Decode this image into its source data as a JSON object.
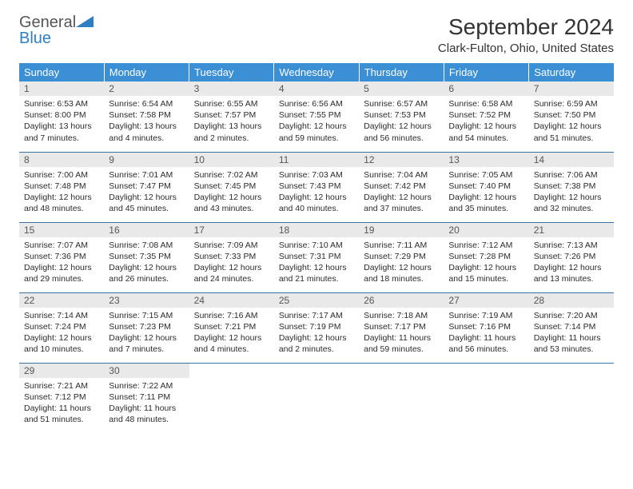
{
  "brand": {
    "word1": "General",
    "word2": "Blue"
  },
  "title": "September 2024",
  "location": "Clark-Fulton, Ohio, United States",
  "colors": {
    "header_bg": "#3b8fd4",
    "header_text": "#ffffff",
    "daynum_bg": "#e9e9e9",
    "row_border": "#3873a3",
    "brand_blue": "#2d7fc1"
  },
  "weekdays": [
    "Sunday",
    "Monday",
    "Tuesday",
    "Wednesday",
    "Thursday",
    "Friday",
    "Saturday"
  ],
  "weeks": [
    [
      {
        "n": "1",
        "sr": "Sunrise: 6:53 AM",
        "ss": "Sunset: 8:00 PM",
        "dl": "Daylight: 13 hours and 7 minutes."
      },
      {
        "n": "2",
        "sr": "Sunrise: 6:54 AM",
        "ss": "Sunset: 7:58 PM",
        "dl": "Daylight: 13 hours and 4 minutes."
      },
      {
        "n": "3",
        "sr": "Sunrise: 6:55 AM",
        "ss": "Sunset: 7:57 PM",
        "dl": "Daylight: 13 hours and 2 minutes."
      },
      {
        "n": "4",
        "sr": "Sunrise: 6:56 AM",
        "ss": "Sunset: 7:55 PM",
        "dl": "Daylight: 12 hours and 59 minutes."
      },
      {
        "n": "5",
        "sr": "Sunrise: 6:57 AM",
        "ss": "Sunset: 7:53 PM",
        "dl": "Daylight: 12 hours and 56 minutes."
      },
      {
        "n": "6",
        "sr": "Sunrise: 6:58 AM",
        "ss": "Sunset: 7:52 PM",
        "dl": "Daylight: 12 hours and 54 minutes."
      },
      {
        "n": "7",
        "sr": "Sunrise: 6:59 AM",
        "ss": "Sunset: 7:50 PM",
        "dl": "Daylight: 12 hours and 51 minutes."
      }
    ],
    [
      {
        "n": "8",
        "sr": "Sunrise: 7:00 AM",
        "ss": "Sunset: 7:48 PM",
        "dl": "Daylight: 12 hours and 48 minutes."
      },
      {
        "n": "9",
        "sr": "Sunrise: 7:01 AM",
        "ss": "Sunset: 7:47 PM",
        "dl": "Daylight: 12 hours and 45 minutes."
      },
      {
        "n": "10",
        "sr": "Sunrise: 7:02 AM",
        "ss": "Sunset: 7:45 PM",
        "dl": "Daylight: 12 hours and 43 minutes."
      },
      {
        "n": "11",
        "sr": "Sunrise: 7:03 AM",
        "ss": "Sunset: 7:43 PM",
        "dl": "Daylight: 12 hours and 40 minutes."
      },
      {
        "n": "12",
        "sr": "Sunrise: 7:04 AM",
        "ss": "Sunset: 7:42 PM",
        "dl": "Daylight: 12 hours and 37 minutes."
      },
      {
        "n": "13",
        "sr": "Sunrise: 7:05 AM",
        "ss": "Sunset: 7:40 PM",
        "dl": "Daylight: 12 hours and 35 minutes."
      },
      {
        "n": "14",
        "sr": "Sunrise: 7:06 AM",
        "ss": "Sunset: 7:38 PM",
        "dl": "Daylight: 12 hours and 32 minutes."
      }
    ],
    [
      {
        "n": "15",
        "sr": "Sunrise: 7:07 AM",
        "ss": "Sunset: 7:36 PM",
        "dl": "Daylight: 12 hours and 29 minutes."
      },
      {
        "n": "16",
        "sr": "Sunrise: 7:08 AM",
        "ss": "Sunset: 7:35 PM",
        "dl": "Daylight: 12 hours and 26 minutes."
      },
      {
        "n": "17",
        "sr": "Sunrise: 7:09 AM",
        "ss": "Sunset: 7:33 PM",
        "dl": "Daylight: 12 hours and 24 minutes."
      },
      {
        "n": "18",
        "sr": "Sunrise: 7:10 AM",
        "ss": "Sunset: 7:31 PM",
        "dl": "Daylight: 12 hours and 21 minutes."
      },
      {
        "n": "19",
        "sr": "Sunrise: 7:11 AM",
        "ss": "Sunset: 7:29 PM",
        "dl": "Daylight: 12 hours and 18 minutes."
      },
      {
        "n": "20",
        "sr": "Sunrise: 7:12 AM",
        "ss": "Sunset: 7:28 PM",
        "dl": "Daylight: 12 hours and 15 minutes."
      },
      {
        "n": "21",
        "sr": "Sunrise: 7:13 AM",
        "ss": "Sunset: 7:26 PM",
        "dl": "Daylight: 12 hours and 13 minutes."
      }
    ],
    [
      {
        "n": "22",
        "sr": "Sunrise: 7:14 AM",
        "ss": "Sunset: 7:24 PM",
        "dl": "Daylight: 12 hours and 10 minutes."
      },
      {
        "n": "23",
        "sr": "Sunrise: 7:15 AM",
        "ss": "Sunset: 7:23 PM",
        "dl": "Daylight: 12 hours and 7 minutes."
      },
      {
        "n": "24",
        "sr": "Sunrise: 7:16 AM",
        "ss": "Sunset: 7:21 PM",
        "dl": "Daylight: 12 hours and 4 minutes."
      },
      {
        "n": "25",
        "sr": "Sunrise: 7:17 AM",
        "ss": "Sunset: 7:19 PM",
        "dl": "Daylight: 12 hours and 2 minutes."
      },
      {
        "n": "26",
        "sr": "Sunrise: 7:18 AM",
        "ss": "Sunset: 7:17 PM",
        "dl": "Daylight: 11 hours and 59 minutes."
      },
      {
        "n": "27",
        "sr": "Sunrise: 7:19 AM",
        "ss": "Sunset: 7:16 PM",
        "dl": "Daylight: 11 hours and 56 minutes."
      },
      {
        "n": "28",
        "sr": "Sunrise: 7:20 AM",
        "ss": "Sunset: 7:14 PM",
        "dl": "Daylight: 11 hours and 53 minutes."
      }
    ],
    [
      {
        "n": "29",
        "sr": "Sunrise: 7:21 AM",
        "ss": "Sunset: 7:12 PM",
        "dl": "Daylight: 11 hours and 51 minutes."
      },
      {
        "n": "30",
        "sr": "Sunrise: 7:22 AM",
        "ss": "Sunset: 7:11 PM",
        "dl": "Daylight: 11 hours and 48 minutes."
      },
      {
        "empty": true
      },
      {
        "empty": true
      },
      {
        "empty": true
      },
      {
        "empty": true
      },
      {
        "empty": true
      }
    ]
  ]
}
